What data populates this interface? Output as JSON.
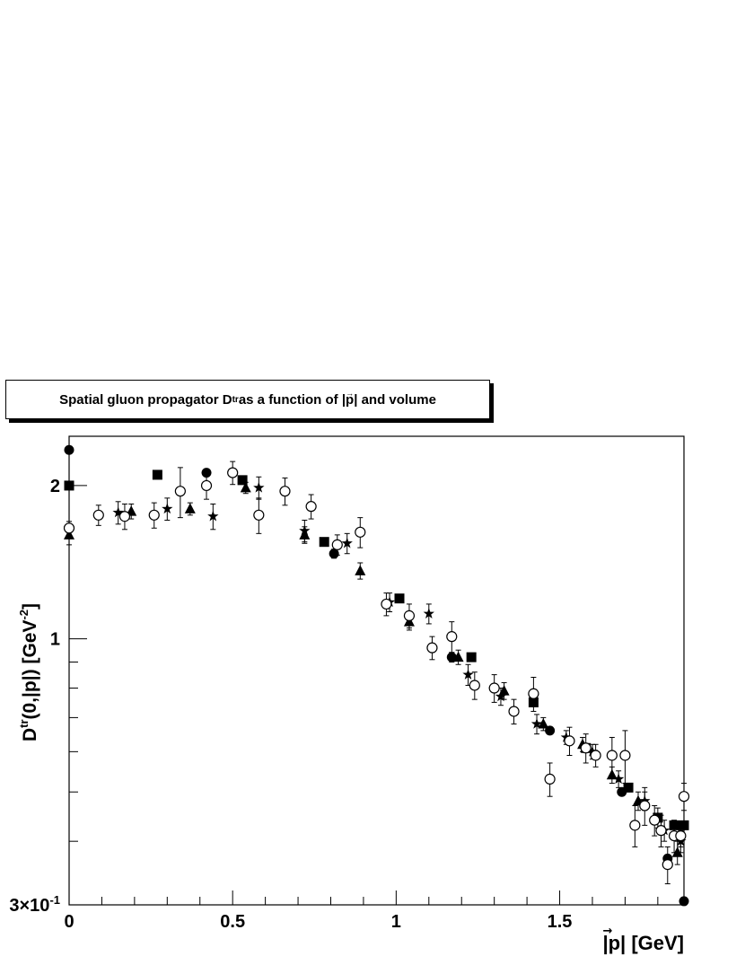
{
  "chart_data": {
    "type": "scatter",
    "title": {
      "prefix": "Spatial gluon propagator D",
      "sup": "tr",
      "middle": " as a function of |",
      "vec": "p",
      "suffix": "| and volume"
    },
    "xlabel": {
      "pre": "|",
      "vec": "p",
      "post": "| [GeV]"
    },
    "ylabel": {
      "main": "D",
      "sup": "tr",
      "mid": "(0,|",
      "vec": "p",
      "post": "|) [GeV",
      "exp": "-2",
      "close": "]"
    },
    "xlim": [
      0,
      1.88
    ],
    "ylim": [
      0.3,
      2.5
    ],
    "yscale": "log",
    "grid": false,
    "x_tick_labels": [
      {
        "value": 0,
        "label": "0"
      },
      {
        "value": 0.5,
        "label": "0.5"
      },
      {
        "value": 1,
        "label": "1"
      },
      {
        "value": 1.5,
        "label": "1.5"
      }
    ],
    "y_tick_labels": [
      {
        "value": 0.3,
        "label": "3×10",
        "exp": "-1"
      },
      {
        "value": 1,
        "label": "1",
        "exp": ""
      },
      {
        "value": 2,
        "label": "2",
        "exp": ""
      }
    ],
    "series": [
      {
        "marker": "circle-filled",
        "points": [
          {
            "x": 0.0,
            "y": 2.35,
            "err": 0.0
          },
          {
            "x": 0.42,
            "y": 2.12,
            "err": 0.0
          },
          {
            "x": 0.81,
            "y": 1.47,
            "err": 0.03
          },
          {
            "x": 1.17,
            "y": 0.92,
            "err": 0.02
          },
          {
            "x": 1.47,
            "y": 0.66,
            "err": 0.0
          },
          {
            "x": 1.69,
            "y": 0.5,
            "err": 0.0
          },
          {
            "x": 1.83,
            "y": 0.37,
            "err": 0.0
          },
          {
            "x": 1.88,
            "y": 0.305,
            "err": 0.0
          }
        ]
      },
      {
        "marker": "square-filled",
        "points": [
          {
            "x": 0.0,
            "y": 2.0,
            "err": 0.0
          },
          {
            "x": 0.27,
            "y": 2.1,
            "err": 0.0
          },
          {
            "x": 0.53,
            "y": 2.05,
            "err": 0.0
          },
          {
            "x": 0.78,
            "y": 1.55,
            "err": 0.0
          },
          {
            "x": 1.01,
            "y": 1.2,
            "err": 0.0
          },
          {
            "x": 1.23,
            "y": 0.92,
            "err": 0.0
          },
          {
            "x": 1.42,
            "y": 0.75,
            "err": 0.0
          },
          {
            "x": 1.58,
            "y": 0.61,
            "err": 0.0
          },
          {
            "x": 1.71,
            "y": 0.51,
            "err": 0.0
          },
          {
            "x": 1.8,
            "y": 0.445,
            "err": 0.0
          },
          {
            "x": 1.85,
            "y": 0.43,
            "err": 0.0
          },
          {
            "x": 1.88,
            "y": 0.43,
            "err": 0.0
          }
        ]
      },
      {
        "marker": "triangle-filled",
        "points": [
          {
            "x": 0.0,
            "y": 1.6,
            "err": 0.07
          },
          {
            "x": 0.19,
            "y": 1.78,
            "err": 0.06
          },
          {
            "x": 0.37,
            "y": 1.8,
            "err": 0.05
          },
          {
            "x": 0.54,
            "y": 1.98,
            "err": 0.05
          },
          {
            "x": 0.72,
            "y": 1.6,
            "err": 0.06
          },
          {
            "x": 0.89,
            "y": 1.36,
            "err": 0.05
          },
          {
            "x": 1.04,
            "y": 1.08,
            "err": 0.04
          },
          {
            "x": 1.19,
            "y": 0.92,
            "err": 0.03
          },
          {
            "x": 1.33,
            "y": 0.79,
            "err": 0.03
          },
          {
            "x": 1.45,
            "y": 0.68,
            "err": 0.02
          },
          {
            "x": 1.57,
            "y": 0.62,
            "err": 0.02
          },
          {
            "x": 1.66,
            "y": 0.54,
            "err": 0.02
          },
          {
            "x": 1.74,
            "y": 0.48,
            "err": 0.02
          },
          {
            "x": 1.8,
            "y": 0.445,
            "err": 0.02
          },
          {
            "x": 1.86,
            "y": 0.38,
            "err": 0.02
          }
        ]
      },
      {
        "marker": "star-filled",
        "points": [
          {
            "x": 0.0,
            "y": 1.65,
            "err": 0.05
          },
          {
            "x": 0.15,
            "y": 1.77,
            "err": 0.09
          },
          {
            "x": 0.3,
            "y": 1.8,
            "err": 0.09
          },
          {
            "x": 0.44,
            "y": 1.74,
            "err": 0.1
          },
          {
            "x": 0.58,
            "y": 1.98,
            "err": 0.1
          },
          {
            "x": 0.72,
            "y": 1.63,
            "err": 0.08
          },
          {
            "x": 0.85,
            "y": 1.54,
            "err": 0.07
          },
          {
            "x": 0.98,
            "y": 1.18,
            "err": 0.05
          },
          {
            "x": 1.1,
            "y": 1.12,
            "err": 0.05
          },
          {
            "x": 1.22,
            "y": 0.85,
            "err": 0.04
          },
          {
            "x": 1.32,
            "y": 0.77,
            "err": 0.03
          },
          {
            "x": 1.43,
            "y": 0.68,
            "err": 0.03
          },
          {
            "x": 1.52,
            "y": 0.64,
            "err": 0.02
          },
          {
            "x": 1.6,
            "y": 0.6,
            "err": 0.02
          },
          {
            "x": 1.68,
            "y": 0.53,
            "err": 0.02
          },
          {
            "x": 1.76,
            "y": 0.48,
            "err": 0.02
          },
          {
            "x": 1.82,
            "y": 0.42,
            "err": 0.02
          },
          {
            "x": 1.87,
            "y": 0.4,
            "err": 0.02
          }
        ]
      },
      {
        "marker": "circle-open",
        "points": [
          {
            "x": 0.0,
            "y": 1.65,
            "err": 0.05
          },
          {
            "x": 0.09,
            "y": 1.75,
            "err": 0.08
          },
          {
            "x": 0.17,
            "y": 1.74,
            "err": 0.1
          },
          {
            "x": 0.26,
            "y": 1.75,
            "err": 0.1
          },
          {
            "x": 0.34,
            "y": 1.95,
            "err": 0.22
          },
          {
            "x": 0.42,
            "y": 2.0,
            "err": 0.12
          },
          {
            "x": 0.5,
            "y": 2.12,
            "err": 0.11
          },
          {
            "x": 0.58,
            "y": 1.75,
            "err": 0.14
          },
          {
            "x": 0.66,
            "y": 1.95,
            "err": 0.12
          },
          {
            "x": 0.74,
            "y": 1.82,
            "err": 0.1
          },
          {
            "x": 0.82,
            "y": 1.53,
            "err": 0.07
          },
          {
            "x": 0.89,
            "y": 1.62,
            "err": 0.11
          },
          {
            "x": 0.97,
            "y": 1.17,
            "err": 0.06
          },
          {
            "x": 1.04,
            "y": 1.11,
            "err": 0.06
          },
          {
            "x": 1.11,
            "y": 0.96,
            "err": 0.05
          },
          {
            "x": 1.17,
            "y": 1.01,
            "err": 0.07
          },
          {
            "x": 1.24,
            "y": 0.81,
            "err": 0.05
          },
          {
            "x": 1.3,
            "y": 0.8,
            "err": 0.05
          },
          {
            "x": 1.36,
            "y": 0.72,
            "err": 0.04
          },
          {
            "x": 1.42,
            "y": 0.78,
            "err": 0.06
          },
          {
            "x": 1.47,
            "y": 0.53,
            "err": 0.04
          },
          {
            "x": 1.53,
            "y": 0.63,
            "err": 0.04
          },
          {
            "x": 1.58,
            "y": 0.61,
            "err": 0.04
          },
          {
            "x": 1.61,
            "y": 0.59,
            "err": 0.03
          },
          {
            "x": 1.66,
            "y": 0.59,
            "err": 0.05
          },
          {
            "x": 1.7,
            "y": 0.59,
            "err": 0.07
          },
          {
            "x": 1.73,
            "y": 0.43,
            "err": 0.04
          },
          {
            "x": 1.76,
            "y": 0.47,
            "err": 0.04
          },
          {
            "x": 1.79,
            "y": 0.44,
            "err": 0.03
          },
          {
            "x": 1.81,
            "y": 0.42,
            "err": 0.03
          },
          {
            "x": 1.83,
            "y": 0.36,
            "err": 0.03
          },
          {
            "x": 1.85,
            "y": 0.41,
            "err": 0.03
          },
          {
            "x": 1.87,
            "y": 0.41,
            "err": 0.02
          },
          {
            "x": 1.88,
            "y": 0.49,
            "err": 0.03
          }
        ]
      }
    ]
  }
}
